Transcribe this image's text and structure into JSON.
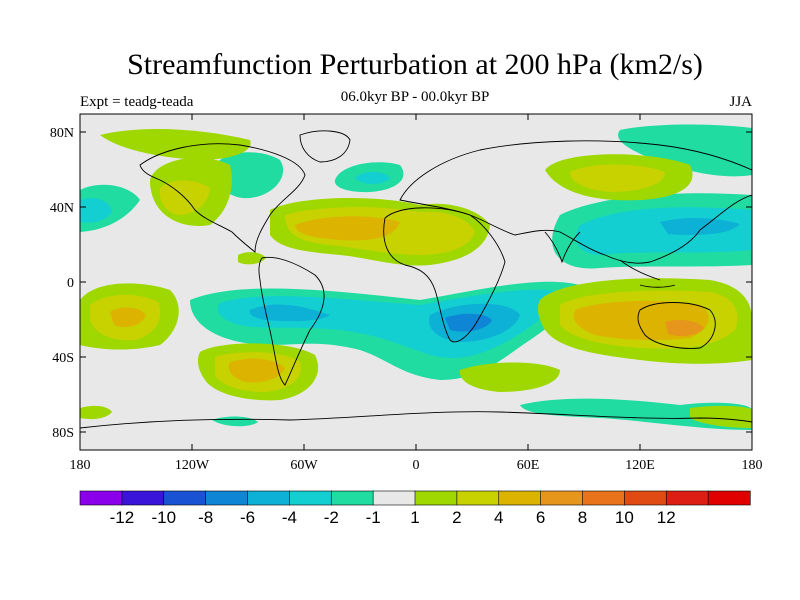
{
  "title": "Streamfunction Perturbation at 200 hPa (km2/s)",
  "left_label": "Expt = teadg-teada",
  "center_label": "06.0kyr BP - 00.0kyr BP",
  "right_label": "JJA",
  "lat_labels": [
    "80N",
    "40N",
    "0",
    "40S",
    "80S"
  ],
  "lon_labels": [
    "180",
    "120W",
    "60W",
    "0",
    "60E",
    "120E",
    "180"
  ],
  "colorbar": {
    "colors": [
      "#8b00ea",
      "#3a14d8",
      "#1a52d4",
      "#0f85d6",
      "#0eb1d6",
      "#13cfd2",
      "#20dca0",
      "#e8e8e8",
      "#9ed800",
      "#c8d200",
      "#dcb400",
      "#e6961b",
      "#e8731a",
      "#e04b14",
      "#dc1e14",
      "#e00000"
    ],
    "labels": [
      "-12",
      "-10",
      "-8",
      "-6",
      "-4",
      "-2",
      "-1",
      "1",
      "2",
      "4",
      "6",
      "8",
      "10",
      "12"
    ]
  },
  "fill_colors": {
    "neg1": "#20dca0",
    "neg2": "#13cfd2",
    "neg4": "#0eb1d6",
    "neg6": "#0f85d6",
    "pos1": "#9ed800",
    "pos2": "#c8d200",
    "pos4": "#dcb400",
    "pos6": "#e6961b",
    "neutral": "#e8e8e8"
  }
}
